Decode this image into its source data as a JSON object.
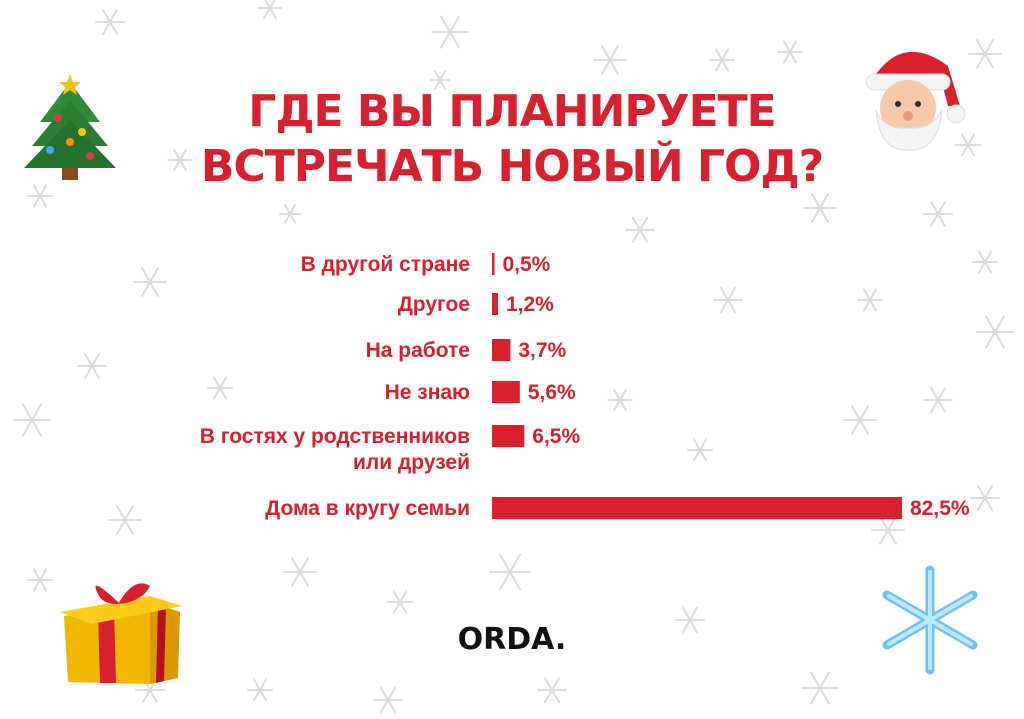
{
  "title": {
    "line1": "ГДЕ ВЫ ПЛАНИРУЕТЕ",
    "line2": "ВСТРЕЧАТЬ НОВЫЙ ГОД?"
  },
  "brand": "ORDA.",
  "colors": {
    "accent": "#d8202f",
    "snow": "#dcdcdc",
    "text": "#111111"
  },
  "decorations": [
    "christmas-tree-icon",
    "santa-icon",
    "gift-box-icon",
    "snowflake-icon"
  ],
  "chart_data": {
    "type": "bar",
    "orientation": "horizontal",
    "title": "ГДЕ ВЫ ПЛАНИРУЕТЕ ВСТРЕЧАТЬ НОВЫЙ ГОД?",
    "categories": [
      [
        "В другой стране"
      ],
      [
        "Другое"
      ],
      [
        "На работе"
      ],
      [
        "Не знаю"
      ],
      [
        "В гостях у родственников",
        "или друзей"
      ],
      [
        "Дома в кругу семьи"
      ]
    ],
    "values": [
      0.5,
      1.2,
      3.7,
      5.6,
      6.5,
      82.5
    ],
    "value_labels": [
      "0,5%",
      "1,2%",
      "3,7%",
      "5,6%",
      "6,5%",
      "82,5%"
    ],
    "unit": "%",
    "grid": false,
    "legend": "none"
  }
}
